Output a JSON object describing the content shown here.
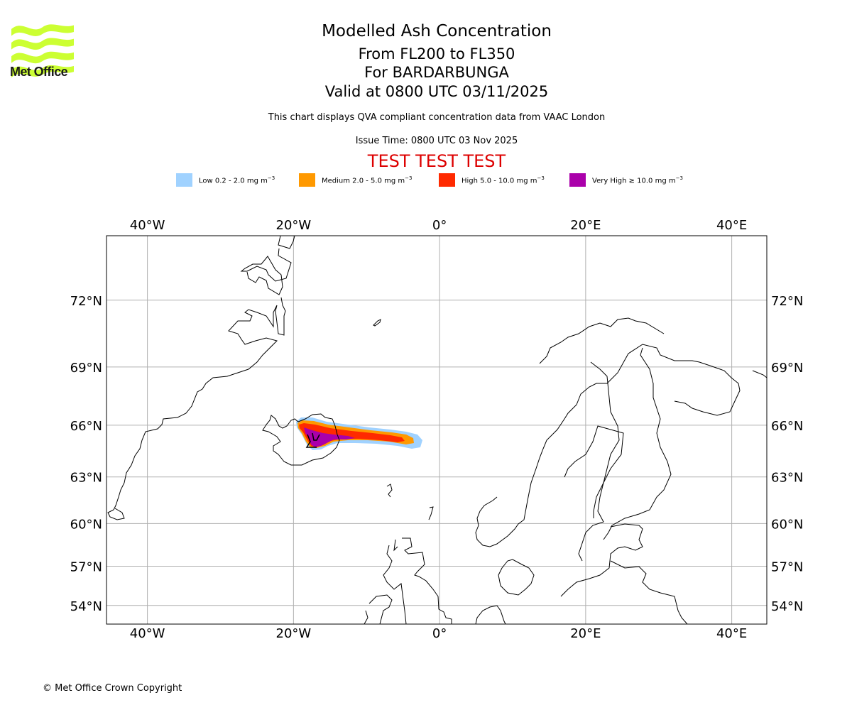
{
  "logo": {
    "text": "Met Office",
    "icon": "met-office-waves-icon",
    "color": "#ccff33"
  },
  "titles": {
    "main": "Modelled Ash Concentration",
    "levels": "From FL200 to FL350",
    "volcano": "For BARDARBUNGA",
    "valid": "Valid at 0800 UTC 03/11/2025",
    "description": "This chart displays QVA compliant concentration data from VAAC London",
    "issue_time": "Issue Time: 0800 UTC 03 Nov 2025",
    "test_banner": "TEST TEST TEST"
  },
  "legend": [
    {
      "label": "Low 0.2 - 2.0 mg m",
      "exp": "−3",
      "color": "#a0d2ff"
    },
    {
      "label": "Medium 2.0 - 5.0 mg m",
      "exp": "−3",
      "color": "#ff9900"
    },
    {
      "label": "High 5.0 - 10.0 mg m",
      "exp": "−3",
      "color": "#ff2a00"
    },
    {
      "label": "Very High  ≥  10.0 mg m",
      "exp": "−3",
      "color": "#aa00aa"
    }
  ],
  "axes": {
    "lon_ticks": [
      {
        "value": -40,
        "label": "40°W"
      },
      {
        "value": -20,
        "label": "20°W"
      },
      {
        "value": 0,
        "label": "0°"
      },
      {
        "value": 20,
        "label": "20°E"
      },
      {
        "value": 40,
        "label": "40°E"
      }
    ],
    "lat_ticks": [
      {
        "value": 72,
        "label": "72°N"
      },
      {
        "value": 69,
        "label": "69°N"
      },
      {
        "value": 66,
        "label": "66°N"
      },
      {
        "value": 63,
        "label": "63°N"
      },
      {
        "value": 60,
        "label": "60°N"
      },
      {
        "value": 57,
        "label": "57°N"
      },
      {
        "value": 54,
        "label": "54°N"
      }
    ],
    "lon_range": [
      -45.6,
      44.8
    ],
    "lat_range": [
      52.5,
      74.5
    ]
  },
  "ash_plume": {
    "source": "BARDARBUNGA",
    "source_lat": 64.6,
    "source_lon": -17.5,
    "extent_east_lon": -2.5
  },
  "footer": {
    "copyright": "© Met Office Crown Copyright"
  }
}
